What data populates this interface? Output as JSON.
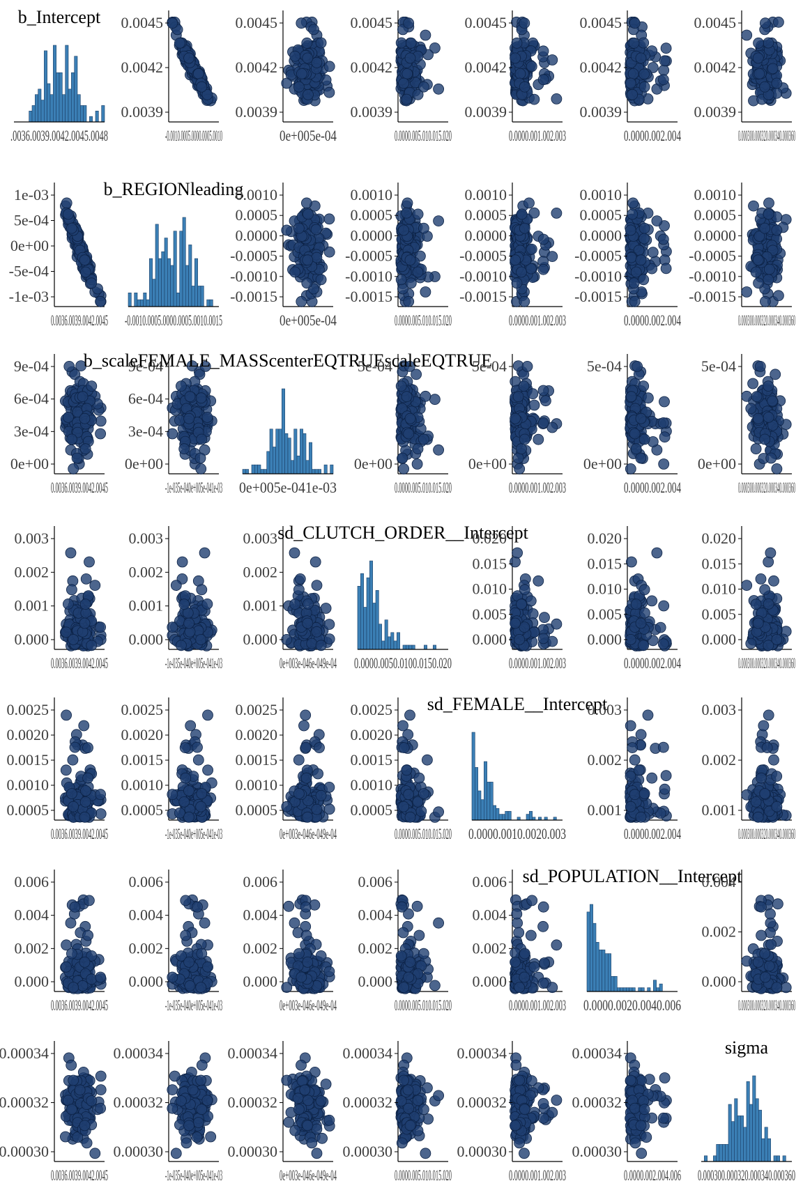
{
  "chart_data": {
    "type": "scatter",
    "layout": "pairs-matrix",
    "grid": false,
    "colors": {
      "point_fill": "#1f3f70",
      "point_stroke": "#0c2245",
      "hist_fill": "#3b7fb5",
      "hist_stroke": "#1c3f66",
      "axis": "#000000",
      "tick_text": "#3d3d3d"
    },
    "parameters": [
      "b_Intercept",
      "b_REGIONleading",
      "b_scaleFEMALE_MASScenterEQTRUEscaleEQTRUE",
      "sd_CLUTCH_ORDER__Intercept",
      "sd_FEMALE__Intercept",
      "sd_POPULATION__Intercept",
      "sigma"
    ],
    "y_ticks": [
      [
        "0.0045",
        "0.0042",
        "0.0039"
      ],
      [
        "1e-03",
        "5e-04",
        "0e+00",
        "-5e-04",
        "-1e-03"
      ],
      [
        "9e-04",
        "6e-04",
        "3e-04",
        "0e+00"
      ],
      [
        "0.003",
        "0.002",
        "0.001",
        "0.000"
      ],
      [
        "0.0025",
        "0.0020",
        "0.0015",
        "0.0010",
        "0.0005"
      ],
      [
        "0.006",
        "0.004",
        "0.002",
        "0.000"
      ],
      [
        "0.00034",
        "0.00032",
        "0.00030"
      ]
    ],
    "y_ticks_alt": {
      "1": [
        "0.0010",
        "0.0005",
        "0.0000",
        "-0.0005",
        "-0.0010",
        "-0.0015"
      ],
      "2": [
        "5e-04",
        "0e+00"
      ],
      "3": [
        "0.020",
        "0.015",
        "0.010",
        "0.005",
        "0.000"
      ],
      "4": [
        "0.003",
        "0.002",
        "0.001"
      ],
      "5": [
        "0.004",
        "0.002",
        "0.000"
      ]
    },
    "x_tick_text": [
      [
        ".0036.0039.0042.0045.0048",
        "-0.0010.0005.0000.0005.0010",
        "0e+005e-04",
        "0.0000.005.010.015.020",
        "0.0000.001.002.003",
        "0.0000.002.004",
        "0.000300.000320.000340.000360"
      ],
      [
        "0.0036.0039.0042.0045",
        "-0.0010.0005.0000.0005.0010.0015",
        "0e+005e-04",
        "0.0000.005.010.015.020",
        "0.0000.001.002.003",
        "0.0000.002.004",
        "0.000300.000320.000340.000360"
      ],
      [
        "0.0036.0039.0042.0045",
        "-1e-035e-040e+005e-041e-03",
        "0e+005e-041e-03",
        "0.0000.005.010.015.020",
        "0.0000.001.002.003",
        "0.0000.002.004",
        "0.000300.000320.000340.000360"
      ],
      [
        "0.0036.0039.0042.0045",
        "-1e-035e-040e+005e-041e-03",
        "0e+003e-046e-049e-04",
        "0.0000.0050.0100.0150.020",
        "0.0000.001.002.003",
        "0.0000.002.004",
        "0.000300.000320.000340.000360"
      ],
      [
        "0.0036.0039.0042.0045",
        "-1e-035e-040e+005e-041e-03",
        "0e+003e-046e-049e-04",
        "0.0000.005.010.015.020",
        "0.0000.0010.0020.003",
        "0.0000.002.004",
        "0.000300.000320.000340.000360"
      ],
      [
        "0.0036.0039.0042.0045",
        "-1e-035e-040e+005e-041e-03",
        "0e+003e-046e-049e-04",
        "0.0000.005.010.015.020",
        "0.0000.001.002.003",
        "0.0000.0020.0040.006",
        "0.000300.000320.000340.000360"
      ],
      [
        "0.0036.0039.0042.0045",
        "-1e-035e-040e+005e-041e-03",
        "0e+003e-046e-049e-04",
        "0.0000.005.010.015.020",
        "0.0000.001.002.003",
        "0.0000.002.004.006",
        "0.000300.000320.000340.000360"
      ]
    ]
  }
}
